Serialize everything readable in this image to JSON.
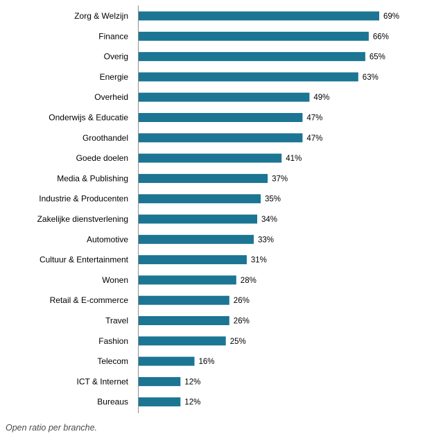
{
  "chart_data": {
    "type": "bar",
    "orientation": "horizontal",
    "categories": [
      "Zorg & Welzijn",
      "Finance",
      "Overig",
      "Energie",
      "Overheid",
      "Onderwijs & Educatie",
      "Groothandel",
      "Goede doelen",
      "Media & Publishing",
      "Industrie & Producenten",
      "Zakelijke dienstverlening",
      "Automotive",
      "Cultuur & Entertainment",
      "Wonen",
      "Retail & E-commerce",
      "Travel",
      "Fashion",
      "Telecom",
      "ICT & Internet",
      "Bureaus"
    ],
    "values": [
      69,
      66,
      65,
      63,
      49,
      47,
      47,
      41,
      37,
      35,
      34,
      33,
      31,
      28,
      26,
      26,
      25,
      16,
      12,
      12
    ],
    "value_labels": [
      "69%",
      "66%",
      "65%",
      "63%",
      "49%",
      "47%",
      "47%",
      "41%",
      "37%",
      "35%",
      "34%",
      "33%",
      "31%",
      "28%",
      "26%",
      "26%",
      "25%",
      "16%",
      "12%",
      "12%"
    ],
    "unit": "%",
    "xlim": [
      0,
      70
    ],
    "grid": false,
    "bar_color": "#1b7593",
    "caption": "Open ratio per branche."
  }
}
